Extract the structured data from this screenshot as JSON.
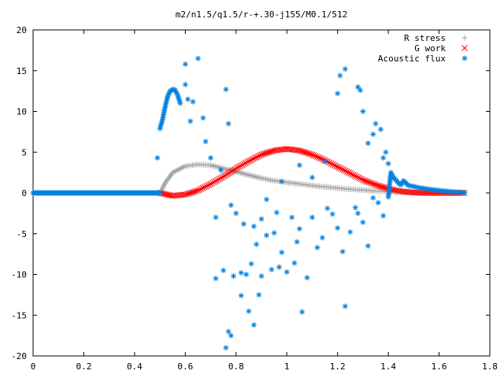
{
  "chart_data": {
    "type": "scatter",
    "title": "m2/n1.5/q1.5/r-+.30-j155/M0.1/512",
    "xlabel": "",
    "ylabel": "",
    "xlim": [
      0,
      1.8
    ],
    "ylim": [
      -20,
      20
    ],
    "x_ticks": [
      "0",
      "0.2",
      "0.4",
      "0.6",
      "0.8",
      "1",
      "1.2",
      "1.4",
      "1.6",
      "1.8"
    ],
    "y_ticks": [
      "20",
      "15",
      "10",
      "5",
      "0",
      "-5",
      "-10",
      "-15",
      "-20"
    ],
    "grid": false,
    "legend_position": "top-right",
    "series": [
      {
        "name": "R stress",
        "marker": "+",
        "color": "#a0a0a0",
        "points": [
          [
            0.5,
            0.0
          ],
          [
            0.52,
            1.2
          ],
          [
            0.55,
            2.5
          ],
          [
            0.6,
            3.3
          ],
          [
            0.65,
            3.5
          ],
          [
            0.7,
            3.4
          ],
          [
            0.75,
            3.0
          ],
          [
            0.8,
            2.6
          ],
          [
            0.85,
            2.2
          ],
          [
            0.9,
            1.8
          ],
          [
            0.95,
            1.5
          ],
          [
            1.0,
            1.3
          ],
          [
            1.05,
            1.1
          ],
          [
            1.1,
            0.9
          ],
          [
            1.15,
            0.75
          ],
          [
            1.2,
            0.6
          ],
          [
            1.25,
            0.45
          ],
          [
            1.3,
            0.35
          ],
          [
            1.35,
            0.25
          ],
          [
            1.4,
            0.18
          ],
          [
            1.45,
            0.1
          ],
          [
            1.5,
            0.05
          ],
          [
            1.55,
            0.0
          ],
          [
            1.6,
            0.0
          ],
          [
            1.65,
            0.0
          ],
          [
            1.7,
            0.0
          ]
        ]
      },
      {
        "name": "G work",
        "marker": "x",
        "color": "#ff0000",
        "points": [
          [
            0.5,
            0.0
          ],
          [
            0.55,
            -0.35
          ],
          [
            0.6,
            -0.2
          ],
          [
            0.65,
            0.3
          ],
          [
            0.7,
            1.1
          ],
          [
            0.75,
            2.0
          ],
          [
            0.8,
            3.0
          ],
          [
            0.85,
            3.9
          ],
          [
            0.9,
            4.7
          ],
          [
            0.95,
            5.2
          ],
          [
            1.0,
            5.4
          ],
          [
            1.05,
            5.2
          ],
          [
            1.1,
            4.7
          ],
          [
            1.15,
            4.0
          ],
          [
            1.2,
            3.2
          ],
          [
            1.25,
            2.4
          ],
          [
            1.3,
            1.6
          ],
          [
            1.35,
            1.0
          ],
          [
            1.4,
            0.5
          ],
          [
            1.45,
            0.2
          ],
          [
            1.5,
            0.05
          ],
          [
            1.55,
            0.0
          ],
          [
            1.6,
            0.0
          ],
          [
            1.65,
            0.0
          ],
          [
            1.7,
            0.0
          ]
        ]
      },
      {
        "name": "Acoustic flux",
        "marker": "*",
        "color": "#0080e0",
        "points": [
          [
            0.0,
            0.0
          ],
          [
            0.05,
            0.0
          ],
          [
            0.1,
            0.0
          ],
          [
            0.15,
            0.0
          ],
          [
            0.2,
            0.0
          ],
          [
            0.25,
            0.0
          ],
          [
            0.3,
            0.0
          ],
          [
            0.35,
            0.0
          ],
          [
            0.4,
            0.0
          ],
          [
            0.45,
            0.0
          ],
          [
            0.5,
            0.0
          ],
          [
            0.49,
            4.3
          ],
          [
            0.5,
            7.9
          ],
          [
            0.51,
            9.0
          ],
          [
            0.52,
            10.5
          ],
          [
            0.53,
            11.8
          ],
          [
            0.54,
            12.5
          ],
          [
            0.55,
            12.7
          ],
          [
            0.56,
            12.6
          ],
          [
            0.57,
            12.0
          ],
          [
            0.58,
            11.0
          ],
          [
            0.6,
            13.3
          ],
          [
            0.6,
            15.8
          ],
          [
            0.61,
            11.5
          ],
          [
            0.62,
            8.8
          ],
          [
            0.63,
            11.2
          ],
          [
            0.65,
            16.5
          ],
          [
            0.67,
            9.2
          ],
          [
            0.68,
            6.3
          ],
          [
            0.7,
            4.3
          ],
          [
            0.72,
            -3.0
          ],
          [
            0.74,
            2.8
          ],
          [
            0.76,
            12.7
          ],
          [
            0.77,
            8.5
          ],
          [
            0.78,
            -1.5
          ],
          [
            0.8,
            -2.5
          ],
          [
            0.82,
            -9.8
          ],
          [
            0.83,
            -3.8
          ],
          [
            0.84,
            -10.0
          ],
          [
            0.85,
            -14.5
          ],
          [
            0.86,
            -8.7
          ],
          [
            0.87,
            -4.1
          ],
          [
            0.88,
            -6.3
          ],
          [
            0.9,
            -3.2
          ],
          [
            0.92,
            -5.2
          ],
          [
            0.94,
            -9.4
          ],
          [
            0.95,
            -4.9
          ],
          [
            0.96,
            -2.4
          ],
          [
            0.97,
            -9.1
          ],
          [
            0.98,
            -7.3
          ],
          [
            1.0,
            -9.7
          ],
          [
            1.02,
            -3.0
          ],
          [
            1.03,
            -8.6
          ],
          [
            1.04,
            -6.0
          ],
          [
            1.05,
            -4.4
          ],
          [
            1.06,
            -14.6
          ],
          [
            1.08,
            -10.4
          ],
          [
            1.1,
            -3.0
          ],
          [
            1.12,
            -6.7
          ],
          [
            1.14,
            -5.5
          ],
          [
            1.16,
            -1.9
          ],
          [
            1.18,
            -2.6
          ],
          [
            1.2,
            -4.3
          ],
          [
            1.22,
            -7.2
          ],
          [
            1.23,
            -13.9
          ],
          [
            1.25,
            -4.8
          ],
          [
            1.27,
            -1.8
          ],
          [
            1.28,
            -2.5
          ],
          [
            1.3,
            -3.6
          ],
          [
            1.32,
            -6.5
          ],
          [
            1.34,
            -0.6
          ],
          [
            1.36,
            -1.2
          ],
          [
            1.38,
            -2.8
          ],
          [
            1.4,
            -0.5
          ],
          [
            0.72,
            -10.5
          ],
          [
            0.75,
            -9.5
          ],
          [
            0.77,
            -17.0
          ],
          [
            0.78,
            -17.5
          ],
          [
            0.79,
            -10.2
          ],
          [
            0.82,
            -12.6
          ],
          [
            0.87,
            -16.2
          ],
          [
            0.89,
            -12.5
          ],
          [
            0.76,
            -19.0
          ],
          [
            0.9,
            -10.2
          ],
          [
            0.92,
            -0.8
          ],
          [
            0.98,
            1.4
          ],
          [
            1.05,
            3.4
          ],
          [
            1.1,
            1.9
          ],
          [
            1.15,
            3.9
          ],
          [
            1.2,
            12.2
          ],
          [
            1.21,
            14.4
          ],
          [
            1.23,
            15.2
          ],
          [
            1.28,
            13.0
          ],
          [
            1.29,
            12.6
          ],
          [
            1.3,
            10.0
          ],
          [
            1.32,
            6.1
          ],
          [
            1.34,
            7.2
          ],
          [
            1.35,
            8.5
          ],
          [
            1.37,
            7.8
          ],
          [
            1.38,
            4.3
          ],
          [
            1.39,
            5.0
          ],
          [
            1.4,
            3.6
          ],
          [
            1.41,
            2.5
          ],
          [
            1.42,
            1.9
          ],
          [
            1.43,
            1.6
          ],
          [
            1.44,
            1.2
          ],
          [
            1.45,
            1.0
          ],
          [
            1.46,
            1.5
          ],
          [
            1.48,
            0.9
          ],
          [
            1.5,
            0.8
          ],
          [
            1.52,
            0.65
          ],
          [
            1.54,
            0.55
          ],
          [
            1.56,
            0.45
          ],
          [
            1.58,
            0.38
          ],
          [
            1.6,
            0.3
          ],
          [
            1.62,
            0.24
          ],
          [
            1.64,
            0.18
          ],
          [
            1.66,
            0.12
          ],
          [
            1.68,
            0.08
          ],
          [
            1.7,
            0.04
          ]
        ]
      }
    ]
  }
}
